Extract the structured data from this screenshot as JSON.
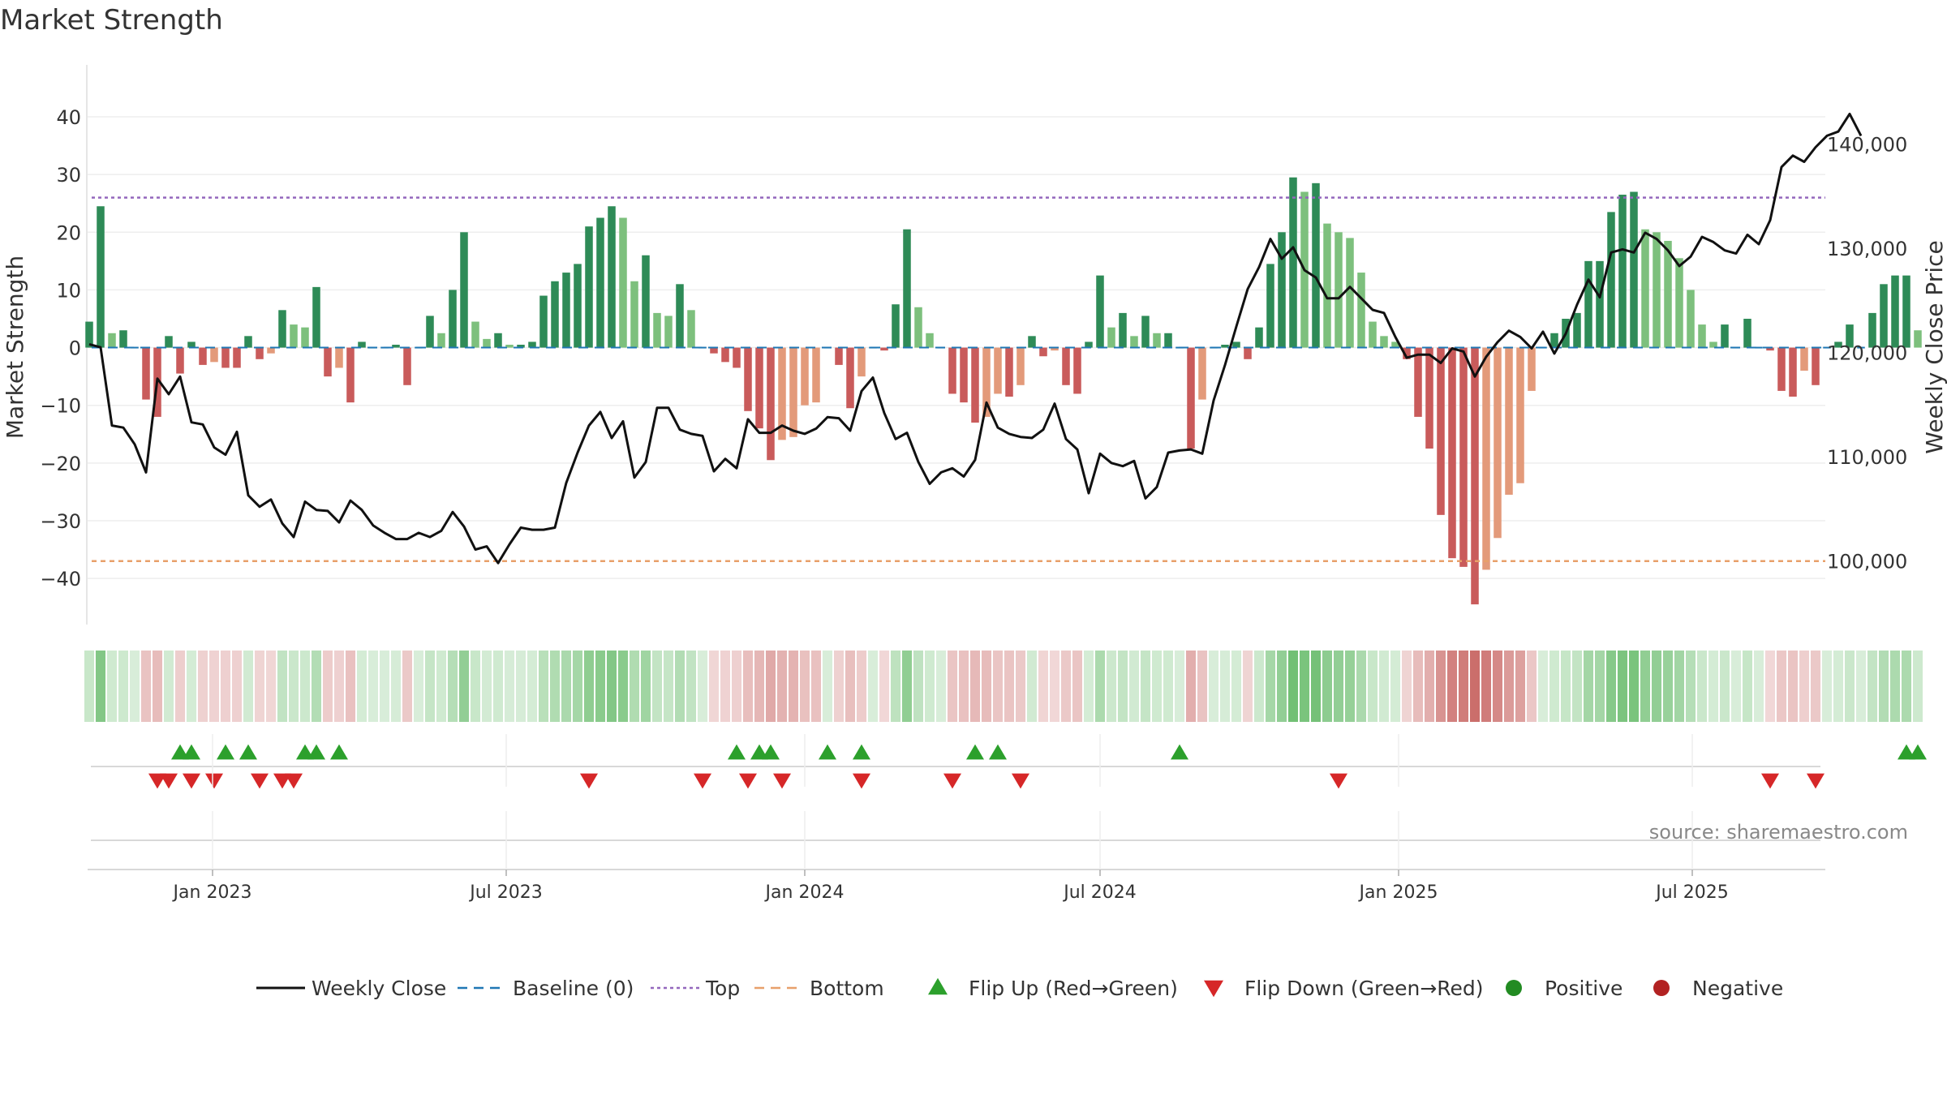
{
  "chart_data": {
    "type": "bar",
    "title": "Market Strength",
    "ylabel": "Market Strength",
    "y2label": "Weekly Close Price",
    "source": "source: sharemaestro.com",
    "ylim": [
      -48,
      49
    ],
    "y2lim": [
      93900,
      147600
    ],
    "yticks": [
      40,
      30,
      20,
      10,
      0,
      -10,
      -20,
      -30,
      -40
    ],
    "y2ticks": [
      140000,
      130000,
      120000,
      110000,
      100000
    ],
    "y2tick_labels": [
      "140,000",
      "130,000",
      "120,000",
      "110,000",
      "100,000"
    ],
    "top": 26,
    "bottom": -37,
    "x_start": "2022-10-16",
    "x_end": "2025-09-21",
    "xticks": [
      {
        "date": "2023-01-01",
        "label": "Jan 2023"
      },
      {
        "date": "2023-07-01",
        "label": "Jul 2023"
      },
      {
        "date": "2024-01-01",
        "label": "Jan 2024"
      },
      {
        "date": "2024-07-01",
        "label": "Jul 2024"
      },
      {
        "date": "2025-01-01",
        "label": "Jan 2025"
      },
      {
        "date": "2025-07-01",
        "label": "Jul 2025"
      }
    ],
    "start_date": "2022-10-17",
    "week_days": 7,
    "strength": [
      4.5,
      24.5,
      2.5,
      3,
      0,
      -9,
      -12,
      2,
      -4.5,
      1,
      -3,
      -2.5,
      -3.5,
      -3.5,
      2,
      -2,
      -1,
      6.5,
      4,
      3.5,
      10.5,
      -5,
      -3.5,
      -9.5,
      1,
      0,
      0,
      0.5,
      -6.5,
      0,
      5.5,
      2.5,
      10,
      20,
      4.5,
      1.5,
      2.5,
      0.5,
      0.5,
      1,
      9,
      11.5,
      13,
      14.5,
      21,
      22.5,
      24.5,
      22.5,
      11.5,
      16,
      6,
      5.5,
      11,
      6.5,
      0,
      -1,
      -2.5,
      -3.5,
      -11,
      -14,
      -19.5,
      -16,
      -15.5,
      -10,
      -9.5,
      0,
      -3,
      -10.5,
      -5,
      0,
      -0.5,
      7.5,
      20.5,
      7,
      2.5,
      0,
      -8,
      -9.5,
      -13,
      -12,
      -8,
      -8.5,
      -6.5,
      2,
      -1.5,
      -0.5,
      -6.5,
      -8,
      1,
      12.5,
      3.5,
      6,
      2,
      5.5,
      2.5,
      2.5,
      0,
      -17.5,
      -9,
      0,
      0.5,
      1,
      -2,
      3.5,
      14.5,
      20,
      29.5,
      27,
      28.5,
      21.5,
      20,
      19,
      13,
      4.5,
      2,
      1,
      -2,
      -12,
      -17.5,
      -29,
      -36.5,
      -38,
      -44.5,
      -38.5,
      -33,
      -25.5,
      -23.5,
      -7.5,
      0,
      2.5,
      5,
      6,
      15,
      15,
      23.5,
      26.5,
      27,
      20.5,
      20,
      18.5,
      15.5,
      10,
      4,
      1,
      4,
      0,
      5,
      0,
      -0.5,
      -7.5,
      -8.5,
      -4,
      -6.5,
      0,
      1,
      4,
      0,
      6,
      11,
      12.5,
      12.5,
      3
    ],
    "close": [
      120800,
      120500,
      113000,
      112800,
      111200,
      108500,
      117500,
      116000,
      117700,
      113300,
      113100,
      110900,
      110200,
      112400,
      106300,
      105200,
      105900,
      103600,
      102300,
      105700,
      104900,
      104800,
      103700,
      105800,
      104900,
      103400,
      102700,
      102100,
      102100,
      102700,
      102300,
      102900,
      104700,
      103300,
      101100,
      101400,
      99800,
      101600,
      103200,
      103000,
      103000,
      103200,
      107500,
      110400,
      113000,
      114300,
      111800,
      113400,
      108000,
      109500,
      114700,
      114700,
      112600,
      112200,
      112000,
      108600,
      109800,
      108900,
      113600,
      112300,
      112300,
      113000,
      112500,
      112200,
      112700,
      113800,
      113700,
      112500,
      116300,
      117600,
      114200,
      111700,
      112300,
      109500,
      107400,
      108500,
      108900,
      108100,
      109700,
      115200,
      112800,
      112200,
      111900,
      111800,
      112600,
      115100,
      111700,
      110700,
      106500,
      110300,
      109400,
      109100,
      109600,
      106000,
      107100,
      110400,
      110600,
      110700,
      110300,
      115400,
      118800,
      122500,
      126100,
      128200,
      130900,
      129000,
      130100,
      127900,
      127200,
      125200,
      125200,
      126300,
      125200,
      124100,
      123800,
      121500,
      119500,
      119800,
      119800,
      119000,
      120400,
      120100,
      117700,
      119600,
      121000,
      122100,
      121500,
      120400,
      122000,
      119900,
      121800,
      124600,
      127000,
      125300,
      129600,
      129900,
      129600,
      131500,
      130900,
      129800,
      128300,
      129200,
      131100,
      130600,
      129800,
      129500,
      131300,
      130400,
      132700,
      137800,
      138900,
      138300,
      139700,
      140800,
      141200,
      142900,
      140800
    ],
    "heat_scale": [
      -45,
      30
    ],
    "flip_up_weeks": [
      8,
      9,
      12,
      14,
      19,
      20,
      22,
      57,
      59,
      60,
      65,
      68,
      78,
      80,
      96,
      160,
      161
    ],
    "flip_down_weeks": [
      6,
      7,
      9,
      11,
      15,
      17,
      18,
      44,
      54,
      58,
      61,
      68,
      76,
      82,
      110,
      148,
      152
    ],
    "legend": [
      {
        "type": "line",
        "label": "Weekly Close",
        "color": "#111111"
      },
      {
        "type": "dashed",
        "label": "Baseline (0)",
        "color": "#1f77b4"
      },
      {
        "type": "dotted",
        "label": "Top",
        "color": "#9467bd"
      },
      {
        "type": "dashed",
        "label": "Bottom",
        "color": "#e8a06a"
      },
      {
        "type": "tri-up",
        "label": "Flip Up (Red→Green)",
        "color": "#2ca02c"
      },
      {
        "type": "tri-down",
        "label": "Flip Down (Green→Red)",
        "color": "#d62728"
      },
      {
        "type": "dot",
        "label": "Positive",
        "color": "#228b22"
      },
      {
        "type": "dot",
        "label": "Negative",
        "color": "#b22222"
      }
    ],
    "colors": {
      "pos_strong": "#2e8b57",
      "pos_weak": "#7dc07d",
      "neg_strong": "#c95b5b",
      "neg_weak": "#e39a7a",
      "grid": "#eeeeee",
      "axis": "#cccccc"
    }
  }
}
